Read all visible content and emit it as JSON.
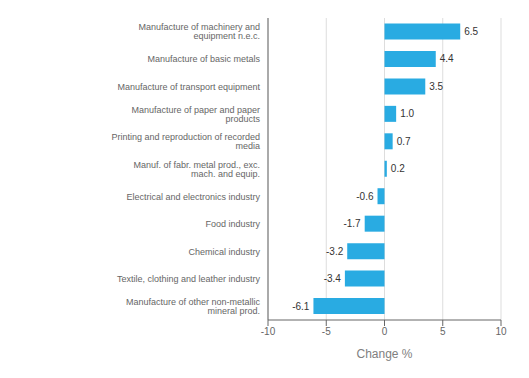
{
  "chart_data": {
    "type": "bar",
    "orientation": "horizontal",
    "categories": [
      "Manufacture of other non-metallic mineral prod.",
      "Textile, clothing and leather industry",
      "Chemical industry",
      "Food industry",
      "Electrical and electronics industry",
      "Manuf. of fabr. metal prod., exc. mach. and equip.",
      "Printing and reproduction of recorded media",
      "Manufacture of paper and paper products",
      "Manufacture of transport equipment",
      "Manufacture of basic metals",
      "Manufacture of machinery and equipment n.e.c."
    ],
    "values": [
      -6.1,
      -3.4,
      -3.2,
      -1.7,
      -0.6,
      0.2,
      0.7,
      1.0,
      3.5,
      4.4,
      6.5
    ],
    "value_labels": [
      "-6.1",
      "-3.4",
      "-3.2",
      "-1.7",
      "-0.6",
      "0.2",
      "0.7",
      "1.0",
      "3.5",
      "4.4",
      "6.5"
    ],
    "color": "#29ABE2",
    "xlabel": "Change %",
    "xlim": [
      -10,
      10
    ],
    "xticks": [
      -10,
      -5,
      0,
      5,
      10
    ],
    "grid": true,
    "data_labels": true
  }
}
